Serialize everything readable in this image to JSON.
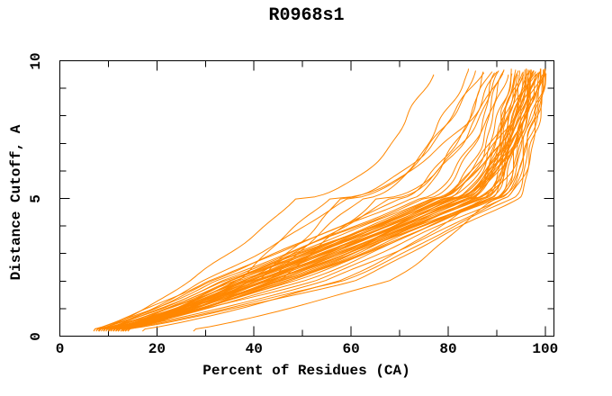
{
  "colors": {
    "curve": "#ff8700",
    "axis": "#000000",
    "text": "#000000",
    "background": "#ffffff"
  },
  "chart_data": {
    "type": "line",
    "title": "R0968s1",
    "xlabel": "Percent of Residues (CA)",
    "ylabel": "Distance Cutoff, A",
    "xlim": [
      0,
      102
    ],
    "ylim": [
      0,
      10
    ],
    "grid": false,
    "legend": "none",
    "frame": "full-box-inward-ticks",
    "axes": {
      "x": {
        "major": [
          0,
          20,
          40,
          60,
          80,
          100
        ],
        "major_labels": [
          "0",
          "20",
          "40",
          "60",
          "80",
          "100"
        ],
        "minor": [
          10,
          30,
          50,
          70,
          90
        ]
      },
      "y": {
        "major": [
          0,
          5,
          10
        ],
        "major_labels": [
          "0",
          "5",
          "10"
        ],
        "minor": [
          1,
          2,
          3,
          4,
          6,
          7,
          8,
          9
        ]
      }
    },
    "series_count": 54,
    "anchor_cutoffs": [
      0.25,
      2,
      5,
      9.65
    ],
    "anchor_note": "each series = estimated percent of residues (x) at the anchor distance cutoffs (A)",
    "series_anchors": [
      [
        8,
        27,
        49,
        77
      ],
      [
        9,
        30,
        60,
        84
      ],
      [
        27.5,
        68,
        90,
        97
      ],
      [
        12,
        42,
        62,
        86
      ],
      [
        7,
        30,
        72,
        88
      ],
      [
        7,
        32,
        75,
        90
      ],
      [
        7.5,
        34,
        78,
        91
      ],
      [
        8,
        36,
        80,
        92
      ],
      [
        8,
        38,
        82,
        93
      ],
      [
        8.5,
        40,
        84,
        94
      ],
      [
        9,
        42,
        86,
        95
      ],
      [
        9,
        44,
        88,
        96
      ],
      [
        9.5,
        35,
        79,
        97
      ],
      [
        10,
        37,
        81,
        98
      ],
      [
        10,
        39,
        83,
        99
      ],
      [
        10,
        41,
        85,
        100
      ],
      [
        10.5,
        43,
        87,
        96
      ],
      [
        11,
        45,
        89,
        97
      ],
      [
        11,
        34,
        76,
        98
      ],
      [
        11.5,
        36,
        78,
        99
      ],
      [
        12,
        38,
        80,
        100
      ],
      [
        12,
        40,
        82,
        95
      ],
      [
        12.5,
        42,
        84,
        96
      ],
      [
        13,
        44,
        86,
        97
      ],
      [
        13,
        46,
        88,
        98
      ],
      [
        13.5,
        37,
        79,
        99
      ],
      [
        11.5,
        39,
        81,
        100
      ],
      [
        11,
        41,
        83,
        94
      ],
      [
        12,
        43,
        85,
        95
      ],
      [
        12.5,
        45,
        87,
        96
      ],
      [
        13,
        47,
        89,
        97
      ],
      [
        13,
        38,
        80,
        98
      ],
      [
        13.5,
        40,
        82,
        99
      ],
      [
        13.5,
        42,
        84,
        100
      ],
      [
        14,
        44,
        86,
        93
      ],
      [
        17,
        58,
        88,
        94
      ],
      [
        12,
        48,
        90,
        99
      ],
      [
        10,
        52,
        91,
        100
      ],
      [
        9,
        33,
        74,
        92
      ],
      [
        8,
        31,
        70,
        89
      ],
      [
        13,
        35,
        77,
        95
      ],
      [
        11.5,
        55,
        92,
        100
      ],
      [
        11,
        47,
        90,
        98
      ],
      [
        12.5,
        58,
        93,
        99
      ],
      [
        13.5,
        60,
        94,
        100
      ],
      [
        9.5,
        45,
        65,
        91
      ],
      [
        10.5,
        38,
        68,
        90
      ],
      [
        11.5,
        41,
        58,
        87
      ],
      [
        12.5,
        44,
        83,
        96
      ],
      [
        13,
        47,
        86,
        99
      ],
      [
        12,
        50,
        89,
        100
      ],
      [
        13,
        36,
        55,
        92
      ],
      [
        14,
        39,
        77,
        95
      ],
      [
        7.5,
        42,
        81,
        98
      ]
    ]
  }
}
